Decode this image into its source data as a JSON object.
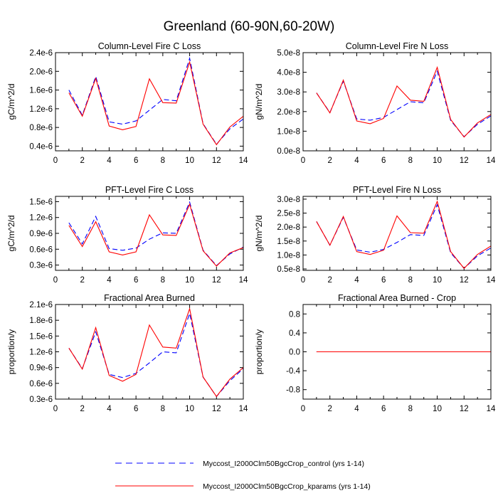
{
  "page_title": "Greenland (60-90N,60-20W)",
  "colors": {
    "control": "#0000ff",
    "kparams": "#ff0000",
    "axes": "#000000"
  },
  "legend": {
    "entries": [
      {
        "label": "Myccost_I2000Clm50BgcCrop_control (yrs 1-14)",
        "style": "dashed",
        "color": "#0000ff"
      },
      {
        "label": "Myccost_I2000Clm50BgcCrop_kparams (yrs 1-14)",
        "style": "solid",
        "color": "#ff0000"
      }
    ]
  },
  "chart_data": [
    {
      "type": "line",
      "title": "Column-Level Fire C Loss",
      "ylabel": "gC/m^2/d",
      "xlim": [
        0,
        14
      ],
      "ylim": [
        3e-07,
        2.4e-06
      ],
      "xticks": [
        0,
        2,
        4,
        6,
        8,
        10,
        12,
        14
      ],
      "yticks": [
        4e-07,
        8e-07,
        1.2e-06,
        1.6e-06,
        2e-06,
        2.4e-06
      ],
      "ytick_labels": [
        "0.4e-6",
        "0.8e-6",
        "1.2e-6",
        "1.6e-6",
        "2.0e-6",
        "2.4e-6"
      ],
      "x": [
        1,
        2,
        3,
        4,
        5,
        6,
        7,
        8,
        9,
        10,
        11,
        12,
        13,
        14
      ],
      "series": [
        {
          "name": "control",
          "style": "dashed",
          "color": "#0000ff",
          "values": [
            1.6e-06,
            1.06e-06,
            1.89e-06,
            9.2e-07,
            8.7e-07,
            9.4e-07,
            1.17e-06,
            1.4e-06,
            1.37e-06,
            2.28e-06,
            8.8e-07,
            4.4e-07,
            7.7e-07,
            9.8e-07
          ]
        },
        {
          "name": "kparams",
          "style": "solid",
          "color": "#ff0000",
          "values": [
            1.54e-06,
            1.04e-06,
            1.85e-06,
            8.3e-07,
            7.5e-07,
            8.2e-07,
            1.84e-06,
            1.33e-06,
            1.32e-06,
            2.2e-06,
            8.7e-07,
            4.3e-07,
            8.1e-07,
            1.04e-06
          ]
        }
      ]
    },
    {
      "type": "line",
      "title": "Column-Level Fire N Loss",
      "ylabel": "gN/m^2/d",
      "xlim": [
        0,
        14
      ],
      "ylim": [
        0.0,
        5e-08
      ],
      "xticks": [
        0,
        2,
        4,
        6,
        8,
        10,
        12,
        14
      ],
      "yticks": [
        0.0,
        1e-08,
        2e-08,
        3e-08,
        4e-08,
        5e-08
      ],
      "ytick_labels": [
        "0.0e-8",
        "1.0e-8",
        "2.0e-8",
        "3.0e-8",
        "4.0e-8",
        "5.0e-8"
      ],
      "x": [
        1,
        2,
        3,
        4,
        5,
        6,
        7,
        8,
        9,
        10,
        11,
        12,
        13,
        14
      ],
      "series": [
        {
          "name": "control",
          "style": "dashed",
          "color": "#0000ff",
          "values": [
            2.95e-08,
            1.95e-08,
            3.55e-08,
            1.62e-08,
            1.56e-08,
            1.7e-08,
            2.1e-08,
            2.5e-08,
            2.45e-08,
            4.05e-08,
            1.55e-08,
            7.2e-09,
            1.35e-08,
            1.78e-08
          ]
        },
        {
          "name": "kparams",
          "style": "solid",
          "color": "#ff0000",
          "values": [
            2.95e-08,
            1.93e-08,
            3.6e-08,
            1.52e-08,
            1.38e-08,
            1.65e-08,
            3.3e-08,
            2.58e-08,
            2.52e-08,
            4.25e-08,
            1.6e-08,
            7e-09,
            1.42e-08,
            1.85e-08
          ]
        }
      ]
    },
    {
      "type": "line",
      "title": "PFT-Level Fire C Loss",
      "ylabel": "gC/m^2/d",
      "xlim": [
        0,
        14
      ],
      "ylim": [
        2e-07,
        1.6e-06
      ],
      "xticks": [
        0,
        2,
        4,
        6,
        8,
        10,
        12,
        14
      ],
      "yticks": [
        3e-07,
        6e-07,
        9e-07,
        1.2e-06,
        1.5e-06
      ],
      "ytick_labels": [
        "0.3e-6",
        "0.6e-6",
        "0.9e-6",
        "1.2e-6",
        "1.5e-6"
      ],
      "x": [
        1,
        2,
        3,
        4,
        5,
        6,
        7,
        8,
        9,
        10,
        11,
        12,
        13,
        14
      ],
      "series": [
        {
          "name": "control",
          "style": "dashed",
          "color": "#0000ff",
          "values": [
            1.1e-06,
            7e-07,
            1.22e-06,
            6.1e-07,
            5.8e-07,
            6.2e-07,
            7.9e-07,
            9.1e-07,
            9e-07,
            1.49e-06,
            5.8e-07,
            2.9e-07,
            5.1e-07,
            6.4e-07
          ]
        },
        {
          "name": "kparams",
          "style": "solid",
          "color": "#ff0000",
          "values": [
            1.05e-06,
            6.5e-07,
            1.12e-06,
            5.5e-07,
            4.9e-07,
            5.5e-07,
            1.25e-06,
            8.7e-07,
            8.6e-07,
            1.45e-06,
            5.7e-07,
            2.8e-07,
            5.3e-07,
            6.3e-07
          ]
        }
      ]
    },
    {
      "type": "line",
      "title": "PFT-Level Fire N Loss",
      "ylabel": "gN/m^2/d",
      "xlim": [
        0,
        14
      ],
      "ylim": [
        4.5e-09,
        3.1e-08
      ],
      "xticks": [
        0,
        2,
        4,
        6,
        8,
        10,
        12,
        14
      ],
      "yticks": [
        5e-09,
        1e-08,
        1.5e-08,
        2e-08,
        2.5e-08,
        3e-08
      ],
      "ytick_labels": [
        "0.5e-8",
        "1.0e-8",
        "1.5e-8",
        "2.0e-8",
        "2.5e-8",
        "3.0e-8"
      ],
      "x": [
        1,
        2,
        3,
        4,
        5,
        6,
        7,
        8,
        9,
        10,
        11,
        12,
        13,
        14
      ],
      "series": [
        {
          "name": "control",
          "style": "dashed",
          "color": "#0000ff",
          "values": [
            2.2e-08,
            1.35e-08,
            2.35e-08,
            1.18e-08,
            1.1e-08,
            1.2e-08,
            1.45e-08,
            1.73e-08,
            1.7e-08,
            2.8e-08,
            1.08e-08,
            5.2e-09,
            9.7e-09,
            1.25e-08
          ]
        },
        {
          "name": "kparams",
          "style": "solid",
          "color": "#ff0000",
          "values": [
            2.2e-08,
            1.35e-08,
            2.38e-08,
            1.12e-08,
            1.02e-08,
            1.17e-08,
            2.4e-08,
            1.8e-08,
            1.78e-08,
            2.92e-08,
            1.12e-08,
            5.2e-09,
            1.02e-08,
            1.32e-08
          ]
        }
      ]
    },
    {
      "type": "line",
      "title": "Fractional Area Burned",
      "ylabel": "proportion/y",
      "xlim": [
        0,
        14
      ],
      "ylim": [
        3e-07,
        2.1e-06
      ],
      "xticks": [
        0,
        2,
        4,
        6,
        8,
        10,
        12,
        14
      ],
      "yticks": [
        3e-07,
        6e-07,
        9e-07,
        1.2e-06,
        1.5e-06,
        1.8e-06,
        2.1e-06
      ],
      "ytick_labels": [
        "0.3e-6",
        "0.6e-6",
        "0.9e-6",
        "1.2e-6",
        "1.5e-6",
        "1.8e-6",
        "2.1e-6"
      ],
      "x": [
        1,
        2,
        3,
        4,
        5,
        6,
        7,
        8,
        9,
        10,
        11,
        12,
        13,
        14
      ],
      "series": [
        {
          "name": "control",
          "style": "dashed",
          "color": "#0000ff",
          "values": [
            1.27e-06,
            8.8e-07,
            1.58e-06,
            7.7e-07,
            7.1e-07,
            7.9e-07,
            9.9e-07,
            1.2e-06,
            1.18e-06,
            1.93e-06,
            7.2e-07,
            3.5e-07,
            6.5e-07,
            8.8e-07
          ]
        },
        {
          "name": "kparams",
          "style": "solid",
          "color": "#ff0000",
          "values": [
            1.27e-06,
            8.7e-07,
            1.66e-06,
            7.5e-07,
            6.4e-07,
            7.7e-07,
            1.71e-06,
            1.29e-06,
            1.27e-06,
            2.02e-06,
            7.2e-07,
            3.5e-07,
            6.8e-07,
            9e-07
          ]
        }
      ]
    },
    {
      "type": "line",
      "title": "Fractional Area Burned - Crop",
      "ylabel": "proportion/y",
      "xlim": [
        0,
        14
      ],
      "ylim": [
        -1.0,
        1.0
      ],
      "xticks": [
        0,
        2,
        4,
        6,
        8,
        10,
        12,
        14
      ],
      "yticks": [
        -0.8,
        -0.4,
        0.0,
        0.4,
        0.8
      ],
      "ytick_labels": [
        "-0.8",
        "-0.4",
        "0.0",
        "0.4",
        "0.8"
      ],
      "x": [
        1,
        2,
        3,
        4,
        5,
        6,
        7,
        8,
        9,
        10,
        11,
        12,
        13,
        14
      ],
      "series": [
        {
          "name": "control",
          "style": "dashed",
          "color": "#0000ff",
          "values": [
            0,
            0,
            0,
            0,
            0,
            0,
            0,
            0,
            0,
            0,
            0,
            0,
            0,
            0
          ]
        },
        {
          "name": "kparams",
          "style": "solid",
          "color": "#ff0000",
          "values": [
            0,
            0,
            0,
            0,
            0,
            0,
            0,
            0,
            0,
            0,
            0,
            0,
            0,
            0
          ]
        }
      ]
    }
  ]
}
